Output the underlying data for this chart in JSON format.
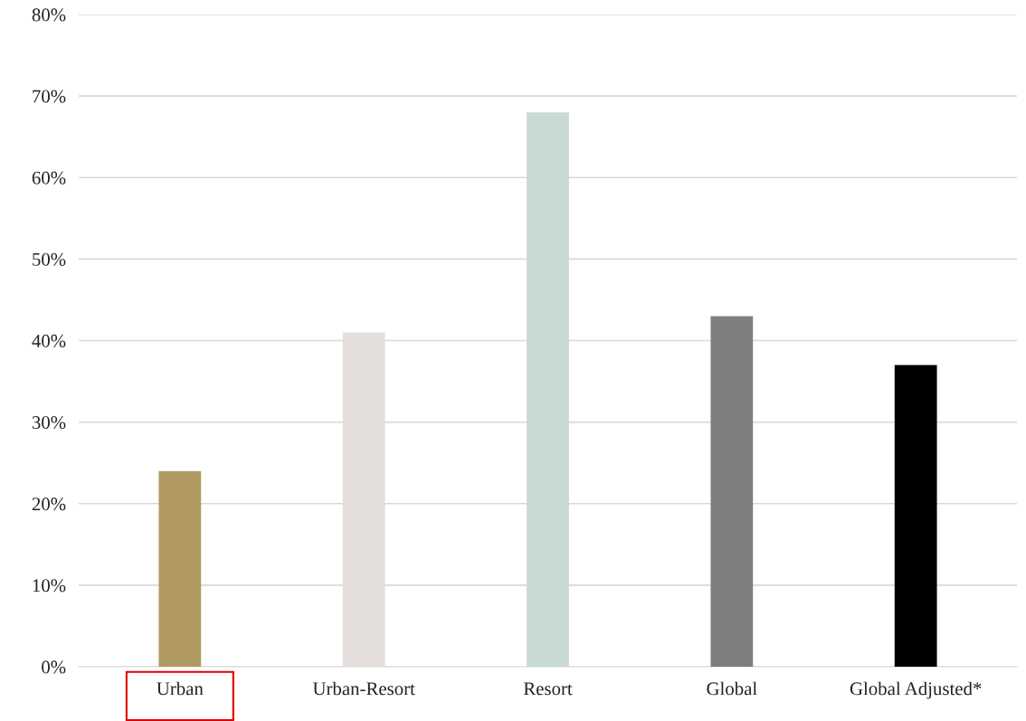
{
  "chart_data": {
    "type": "bar",
    "categories": [
      "Urban",
      "Urban-Resort",
      "Resort",
      "Global",
      "Global Adjusted*"
    ],
    "values": [
      24,
      41,
      68,
      43,
      37
    ],
    "colors": [
      "#b09a62",
      "#e4dfdc",
      "#c8d9d5",
      "#7f7f7f",
      "#000000"
    ],
    "ylim": [
      0,
      80
    ],
    "yticks": [
      {
        "value": 0,
        "label": "0%"
      },
      {
        "value": 10,
        "label": "10%"
      },
      {
        "value": 20,
        "label": "20%"
      },
      {
        "value": 30,
        "label": "30%"
      },
      {
        "value": 40,
        "label": "40%"
      },
      {
        "value": 50,
        "label": "50%"
      },
      {
        "value": 60,
        "label": "60%"
      },
      {
        "value": 70,
        "label": "70%"
      },
      {
        "value": 80,
        "label": "80%"
      }
    ],
    "grid": "y",
    "legend": false
  }
}
